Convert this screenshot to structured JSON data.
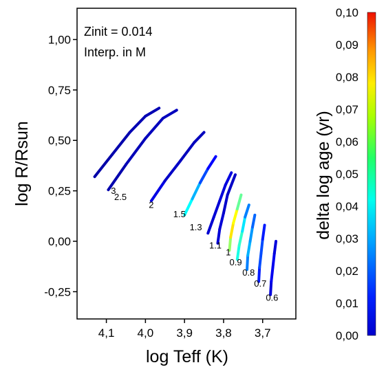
{
  "chart_data": {
    "type": "scatter",
    "title": "",
    "xlabel": "log Teff (K)",
    "ylabel": "log R/Rsun",
    "xlim": [
      4.175,
      3.615
    ],
    "ylim": [
      -0.385,
      1.155
    ],
    "x_reversed": true,
    "x_ticks": [
      "4,1",
      "4,0",
      "3,9",
      "3,8",
      "3,7"
    ],
    "x_tick_values": [
      4.1,
      4.0,
      3.9,
      3.8,
      3.7
    ],
    "y_ticks": [
      "-0,25",
      "0,00",
      "0,25",
      "0,50",
      "0,75",
      "1,00"
    ],
    "y_tick_values": [
      -0.25,
      0.0,
      0.25,
      0.5,
      0.75,
      1.0
    ],
    "annotations": [
      "Zinit = 0.014",
      "Interp. in M"
    ],
    "colorbar": {
      "label": "delta log age (yr)",
      "range": [
        0.0,
        0.1
      ],
      "ticks": [
        "0,00",
        "0,01",
        "0,02",
        "0,03",
        "0,04",
        "0,05",
        "0,06",
        "0,07",
        "0,08",
        "0,09",
        "0,10"
      ],
      "colormap": "jet"
    },
    "grid": false,
    "mass_labels": [
      {
        "text": "3",
        "teff": 4.082,
        "r": 0.235
      },
      {
        "text": "2.5",
        "teff": 4.064,
        "r": 0.205
      },
      {
        "text": "2",
        "teff": 3.985,
        "r": 0.165
      },
      {
        "text": "1.5",
        "teff": 3.913,
        "r": 0.12
      },
      {
        "text": "1.3",
        "teff": 3.871,
        "r": 0.055
      },
      {
        "text": "1.1",
        "teff": 3.821,
        "r": -0.035
      },
      {
        "text": "1",
        "teff": 3.788,
        "r": -0.07
      },
      {
        "text": "0.9",
        "teff": 3.769,
        "r": -0.12
      },
      {
        "text": "0.8",
        "teff": 3.736,
        "r": -0.17
      },
      {
        "text": "0.7",
        "teff": 3.706,
        "r": -0.225
      },
      {
        "text": "0.6",
        "teff": 3.676,
        "r": -0.295
      }
    ],
    "series": [
      {
        "mass": 3.0,
        "x": [
          4.13,
          4.085,
          4.04,
          4.0,
          3.965
        ],
        "y": [
          0.32,
          0.43,
          0.54,
          0.62,
          0.66
        ],
        "delta_log_age": [
          0.004,
          0.004,
          0.005,
          0.005,
          0.005
        ]
      },
      {
        "mass": 2.5,
        "x": [
          4.095,
          4.05,
          4.0,
          3.955,
          3.92
        ],
        "y": [
          0.255,
          0.38,
          0.51,
          0.61,
          0.65
        ],
        "delta_log_age": [
          0.004,
          0.005,
          0.006,
          0.006,
          0.006
        ]
      },
      {
        "mass": 2.0,
        "x": [
          3.985,
          3.95,
          3.91,
          3.875,
          3.85
        ],
        "y": [
          0.2,
          0.3,
          0.4,
          0.49,
          0.54
        ],
        "delta_log_age": [
          0.012,
          0.008,
          0.006,
          0.006,
          0.006
        ]
      },
      {
        "mass": 1.5,
        "x": [
          3.9,
          3.88,
          3.86,
          3.84,
          3.82
        ],
        "y": [
          0.13,
          0.21,
          0.29,
          0.36,
          0.42
        ],
        "delta_log_age": [
          0.04,
          0.035,
          0.025,
          0.015,
          0.01
        ]
      },
      {
        "mass": 1.3,
        "x": [
          3.84,
          3.825,
          3.81,
          3.795,
          3.78
        ],
        "y": [
          0.04,
          0.12,
          0.2,
          0.28,
          0.34
        ],
        "delta_log_age": [
          0.008,
          0.008,
          0.009,
          0.009,
          0.01
        ]
      },
      {
        "mass": 1.1,
        "x": [
          3.815,
          3.81,
          3.8,
          3.79,
          3.77
        ],
        "y": [
          -0.01,
          0.06,
          0.14,
          0.23,
          0.33
        ],
        "delta_log_age": [
          0.008,
          0.009,
          0.008,
          0.007,
          0.007
        ]
      },
      {
        "mass": 1.0,
        "x": [
          3.785,
          3.782,
          3.775,
          3.765,
          3.755
        ],
        "y": [
          -0.045,
          0.02,
          0.09,
          0.16,
          0.23
        ],
        "delta_log_age": [
          0.045,
          0.06,
          0.07,
          0.055,
          0.04
        ]
      },
      {
        "mass": 0.9,
        "x": [
          3.765,
          3.76,
          3.752,
          3.745,
          3.735
        ],
        "y": [
          -0.09,
          -0.02,
          0.05,
          0.12,
          0.18
        ],
        "delta_log_age": [
          0.035,
          0.045,
          0.04,
          0.03,
          0.02
        ]
      },
      {
        "mass": 0.8,
        "x": [
          3.74,
          3.738,
          3.732,
          3.726,
          3.72
        ],
        "y": [
          -0.14,
          -0.07,
          0.0,
          0.07,
          0.13
        ],
        "delta_log_age": [
          0.02,
          0.03,
          0.03,
          0.025,
          0.02
        ]
      },
      {
        "mass": 0.7,
        "x": [
          3.71,
          3.708,
          3.704,
          3.7,
          3.695
        ],
        "y": [
          -0.2,
          -0.13,
          -0.06,
          0.01,
          0.08
        ],
        "delta_log_age": [
          0.012,
          0.018,
          0.022,
          0.018,
          0.012
        ]
      },
      {
        "mass": 0.6,
        "x": [
          3.68,
          3.678,
          3.674,
          3.67,
          3.666
        ],
        "y": [
          -0.265,
          -0.2,
          -0.13,
          -0.06,
          0.0
        ],
        "delta_log_age": [
          0.008,
          0.01,
          0.012,
          0.01,
          0.008
        ]
      }
    ]
  }
}
